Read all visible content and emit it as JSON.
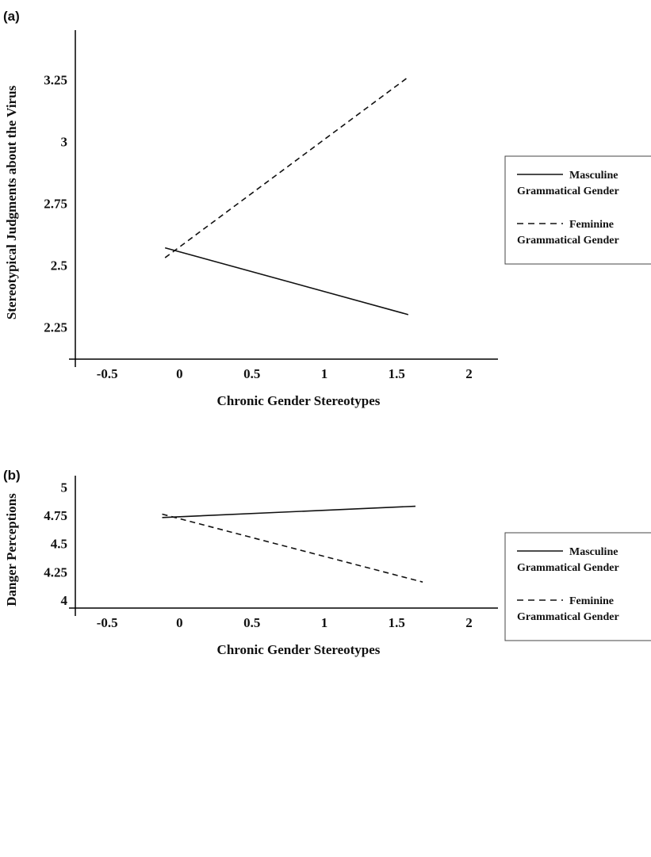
{
  "chart_data": [
    {
      "type": "line",
      "panel_label": "(a)",
      "xlabel": "Chronic Gender Stereotypes",
      "ylabel": "Stereotypical Judgments about the Virus",
      "x_ticks": [
        -0.5,
        0,
        0.5,
        1,
        1.5,
        2
      ],
      "x_tick_labels": [
        "-0.5",
        "0",
        "0.5",
        "1",
        "1.5",
        "2"
      ],
      "y_ticks": [
        2.25,
        2.5,
        2.75,
        3,
        3.25
      ],
      "y_tick_labels": [
        "2.25",
        "2.5",
        "2.75",
        "3",
        "3.25"
      ],
      "xlim": [
        -0.72,
        2.2
      ],
      "ylim": [
        2.12,
        3.45
      ],
      "grid": false,
      "legend_position": "right",
      "series": [
        {
          "legend_line1": "Masculine",
          "legend_line2": "Grammatical Gender",
          "style": "solid",
          "x": [
            -0.1,
            1.58
          ],
          "y": [
            2.57,
            2.3
          ]
        },
        {
          "legend_line1": "Feminine",
          "legend_line2": "Grammatical Gender",
          "style": "dashed",
          "x": [
            -0.1,
            1.58
          ],
          "y": [
            2.53,
            3.26
          ]
        }
      ]
    },
    {
      "type": "line",
      "panel_label": "(b)",
      "xlabel": "Chronic Gender Stereotypes",
      "ylabel": "Danger Perceptions",
      "x_ticks": [
        -0.5,
        0,
        0.5,
        1,
        1.5,
        2
      ],
      "x_tick_labels": [
        "-0.5",
        "0",
        "0.5",
        "1",
        "1.5",
        "2"
      ],
      "y_ticks": [
        4,
        4.25,
        4.5,
        4.75,
        5
      ],
      "y_tick_labels": [
        "4",
        "4.25",
        "4.5",
        "4.75",
        "5"
      ],
      "xlim": [
        -0.72,
        2.2
      ],
      "ylim": [
        3.93,
        5.1
      ],
      "grid": false,
      "legend_position": "right",
      "series": [
        {
          "legend_line1": "Masculine",
          "legend_line2": "Grammatical Gender",
          "style": "solid",
          "x": [
            -0.12,
            1.63
          ],
          "y": [
            4.73,
            4.83
          ]
        },
        {
          "legend_line1": "Feminine",
          "legend_line2": "Grammatical Gender",
          "style": "dashed",
          "x": [
            -0.12,
            1.68
          ],
          "y": [
            4.76,
            4.16
          ]
        }
      ]
    }
  ]
}
